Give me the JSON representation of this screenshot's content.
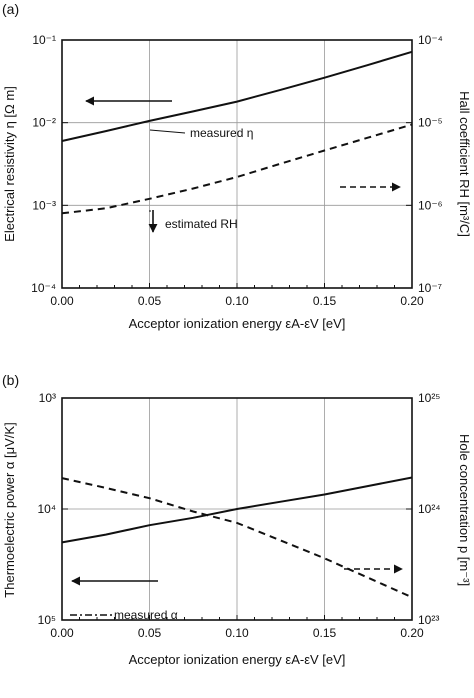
{
  "chart_data": [
    {
      "panel_label": "(a)",
      "type": "line",
      "xlabel": "Acceptor ionization energy εA-εV  [eV]",
      "ylabel": "Electrical resistivity  η [Ω m]",
      "ylabel_right": "Hall coefficient  RH [m³/C]",
      "x_ticks": [
        "0.00",
        "0.05",
        "0.10",
        "0.15",
        "0.20"
      ],
      "y_ticks_left": [
        "10⁻⁴",
        "10⁻³",
        "10⁻²",
        "10⁻¹"
      ],
      "y_ticks_right": [
        "10⁻⁷",
        "10⁻⁶",
        "10⁻⁵",
        "10⁻⁴"
      ],
      "xlim": [
        0,
        0.2
      ],
      "ylim_left": [
        0.0001,
        0.1
      ],
      "ylim_right": [
        1e-07,
        0.0001
      ],
      "y_scale": "log",
      "grid": true,
      "series": [
        {
          "axis": "left",
          "style": "solid",
          "x": [
            0.0,
            0.025,
            0.05,
            0.075,
            0.1,
            0.125,
            0.15,
            0.175,
            0.2
          ],
          "y": [
            0.006,
            0.0079,
            0.0105,
            0.0137,
            0.018,
            0.025,
            0.035,
            0.05,
            0.072
          ]
        },
        {
          "axis": "right",
          "style": "dashed",
          "x": [
            0.0,
            0.025,
            0.05,
            0.075,
            0.1,
            0.125,
            0.15,
            0.175,
            0.2
          ],
          "y": [
            8e-07,
            9.2e-07,
            1.2e-06,
            1.6e-06,
            2.2e-06,
            3.2e-06,
            4.6e-06,
            6.6e-06,
            9.5e-06
          ]
        }
      ],
      "annotations": {
        "measured_label": "measured η",
        "estimated_label": "estimated RH"
      }
    },
    {
      "panel_label": "(b)",
      "type": "line",
      "xlabel": "Acceptor ionization energy εA-εV  [eV]",
      "ylabel": "Thermoelectric power  α [μV/K]",
      "ylabel_right": "Hole concentration  p [m⁻³]",
      "x_ticks": [
        "0.00",
        "0.05",
        "0.10",
        "0.15",
        "0.20"
      ],
      "y_ticks_left": [
        "10⁵",
        "10⁴",
        "10³"
      ],
      "y_ticks_right": [
        "10²³",
        "10²⁴",
        "10²⁵"
      ],
      "xlim": [
        0,
        0.2
      ],
      "ylim_left": [
        1000,
        100000
      ],
      "ylim_left_orientation": "top-to-bottom increasing",
      "ylim_right": [
        1e+23,
        1e+25
      ],
      "y_scale": "log",
      "grid": true,
      "series": [
        {
          "axis": "left",
          "style": "solid",
          "x": [
            0.0,
            0.025,
            0.05,
            0.075,
            0.1,
            0.125,
            0.15,
            0.175,
            0.2
          ],
          "y": [
            20000,
            17000,
            14000,
            12000,
            10000,
            8600,
            7400,
            6200,
            5200
          ]
        },
        {
          "axis": "right",
          "style": "dashed",
          "x": [
            0.0,
            0.025,
            0.05,
            0.075,
            0.1,
            0.125,
            0.15,
            0.175,
            0.2
          ],
          "y": [
            1.9e+24,
            1.55e+24,
            1.25e+24,
            9.5e+23,
            7.5e+23,
            5.2e+23,
            3.6e+23,
            2.4e+23,
            1.6e+23
          ]
        }
      ],
      "annotations": {
        "measured_label": "measured α"
      }
    }
  ]
}
